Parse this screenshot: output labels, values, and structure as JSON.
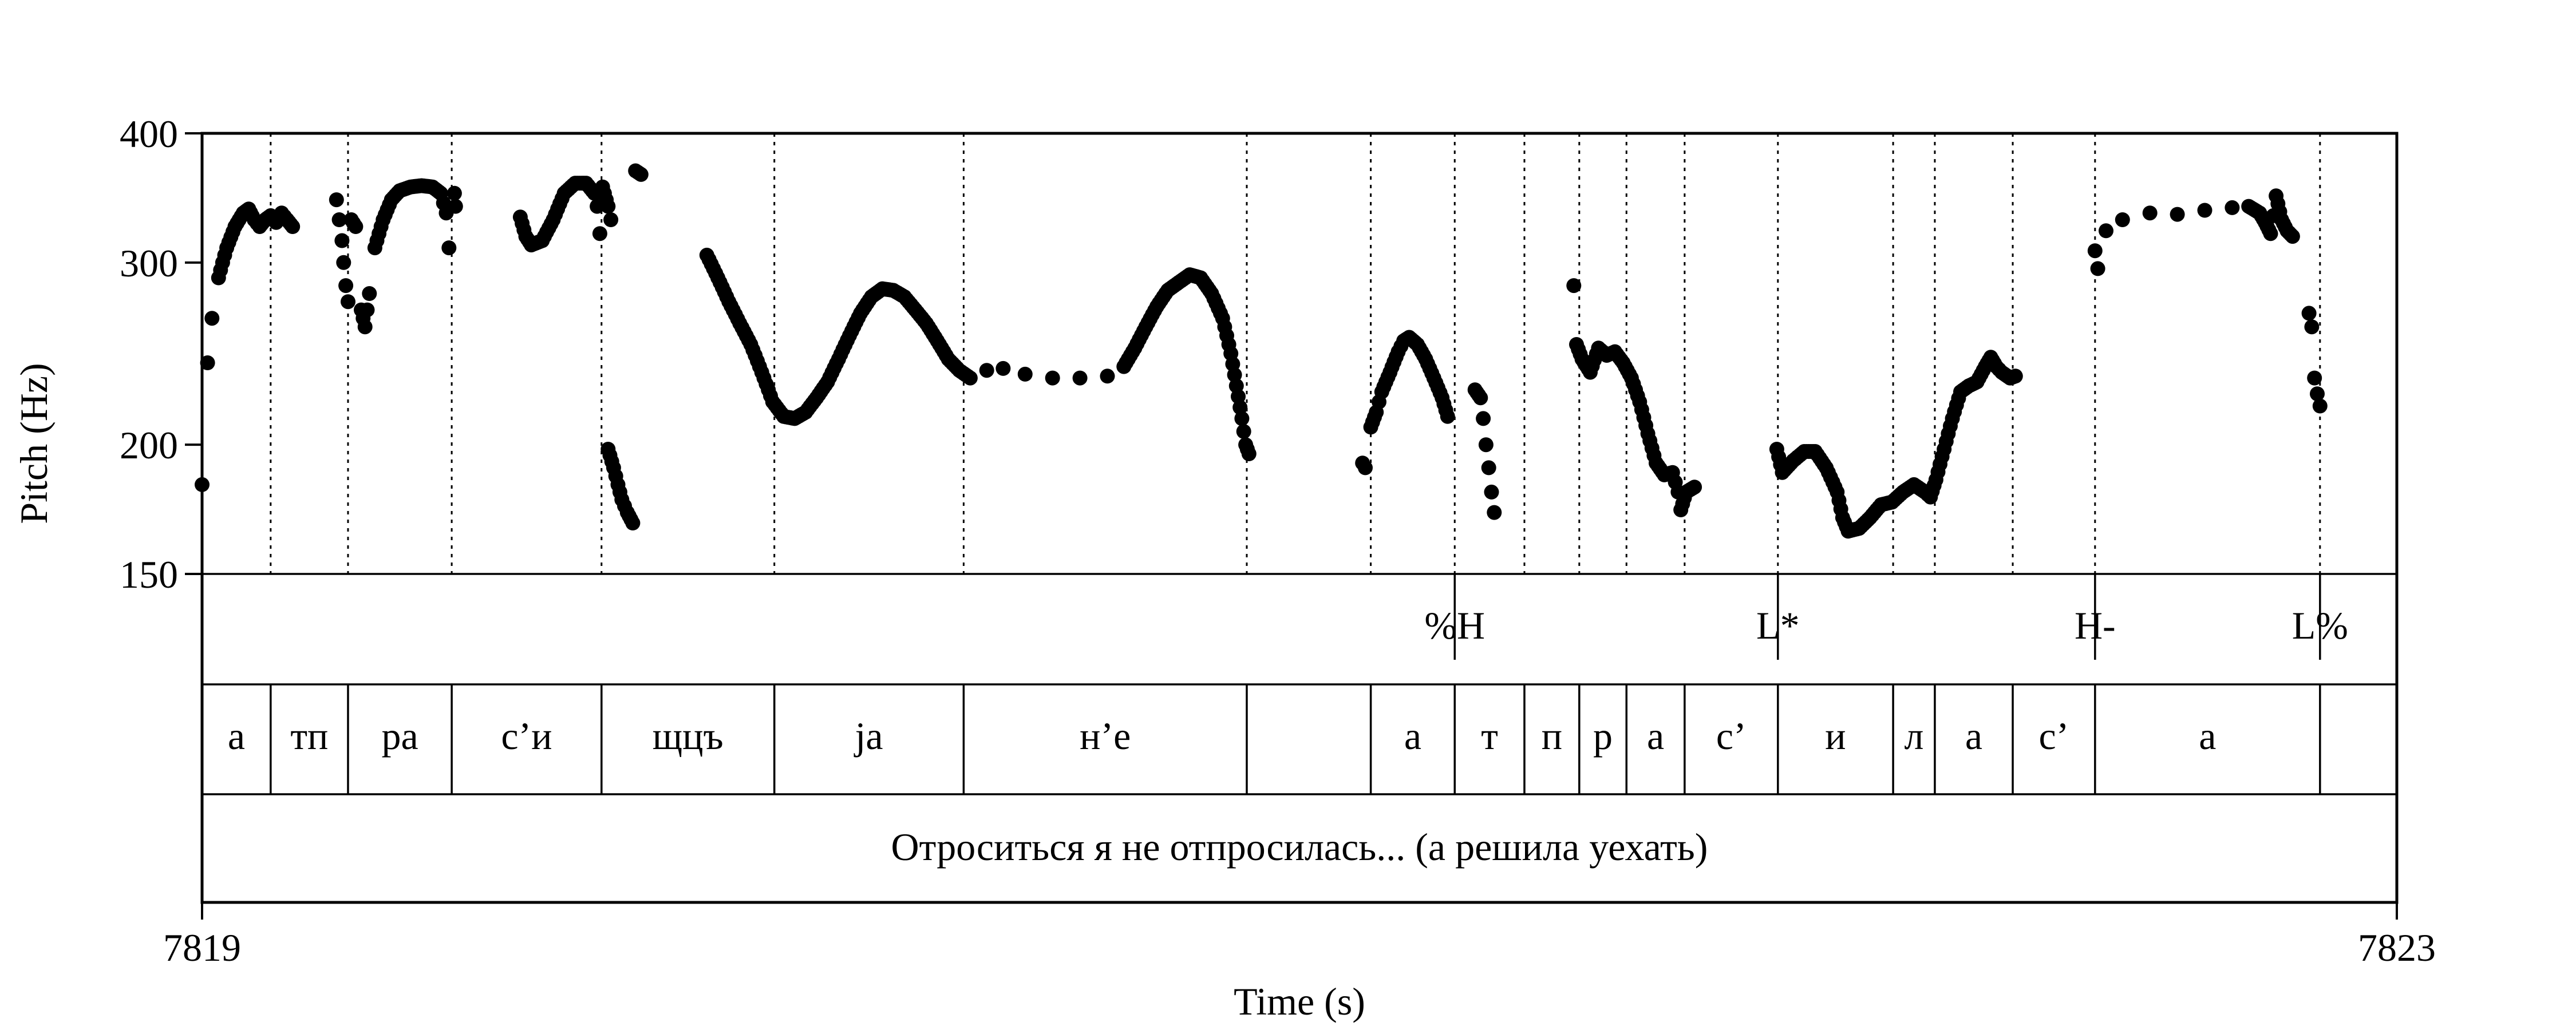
{
  "chart_data": {
    "type": "scatter",
    "xlabel": "Time (s)",
    "ylabel": "Pitch (Hz)",
    "xlim": [
      7819,
      7823
    ],
    "ylim": [
      150,
      400
    ],
    "y_scale": "log",
    "x_tick_labels": [
      "7819",
      "7823"
    ],
    "y_tick_labels": [
      "150",
      "200",
      "300",
      "400"
    ],
    "y_ticks": [
      150,
      200,
      300,
      400
    ],
    "grid": "dotted vertical lines at segment boundaries",
    "tiers": {
      "tones": [
        {
          "label": "%H",
          "t": 7821.283
        },
        {
          "label": "L*",
          "t": 7821.872
        },
        {
          "label": "H-",
          "t": 7822.45
        },
        {
          "label": "L%",
          "t": 7822.86
        }
      ],
      "segments": [
        {
          "label": "а",
          "start": 7819.0,
          "end": 7819.125
        },
        {
          "label": "тп",
          "start": 7819.125,
          "end": 7819.266
        },
        {
          "label": "ра",
          "start": 7819.266,
          "end": 7819.455
        },
        {
          "label": "с’и",
          "start": 7819.455,
          "end": 7819.728
        },
        {
          "label": "щцъ",
          "start": 7819.728,
          "end": 7820.043
        },
        {
          "label": "ja",
          "start": 7820.043,
          "end": 7820.388
        },
        {
          "label": "н’е",
          "start": 7820.388,
          "end": 7820.904
        },
        {
          "label": "",
          "start": 7820.904,
          "end": 7821.13
        },
        {
          "label": "а",
          "start": 7821.13,
          "end": 7821.283
        },
        {
          "label": "т",
          "start": 7821.283,
          "end": 7821.41
        },
        {
          "label": "п",
          "start": 7821.41,
          "end": 7821.51
        },
        {
          "label": "р",
          "start": 7821.51,
          "end": 7821.596
        },
        {
          "label": "а",
          "start": 7821.596,
          "end": 7821.702
        },
        {
          "label": "с’",
          "start": 7821.702,
          "end": 7821.872
        },
        {
          "label": "и",
          "start": 7821.872,
          "end": 7822.082
        },
        {
          "label": "л",
          "start": 7822.082,
          "end": 7822.158
        },
        {
          "label": "а",
          "start": 7822.158,
          "end": 7822.3
        },
        {
          "label": "с’",
          "start": 7822.3,
          "end": 7822.45
        },
        {
          "label": "а",
          "start": 7822.45,
          "end": 7822.86
        },
        {
          "label": "",
          "start": 7822.86,
          "end": 7823.0
        }
      ],
      "sentence": "Отроситься я не отпросилась... (а решила уехать)"
    },
    "series": [
      {
        "points": [
          [
            7819.0,
            183
          ],
          [
            7819.01,
            240
          ],
          [
            7819.018,
            265
          ],
          [
            7819.03,
            290
          ],
          [
            7819.045,
            310
          ],
          [
            7819.06,
            325
          ],
          [
            7819.075,
            335
          ],
          [
            7819.085,
            338
          ],
          [
            7819.095,
            330
          ],
          [
            7819.105,
            325
          ],
          [
            7819.115,
            330
          ],
          [
            7819.125,
            333
          ],
          [
            7819.135,
            328
          ],
          [
            7819.145,
            335
          ],
          [
            7819.155,
            330
          ],
          [
            7819.165,
            325
          ],
          [
            7819.245,
            345
          ],
          [
            7819.25,
            330
          ],
          [
            7819.255,
            315
          ],
          [
            7819.258,
            300
          ],
          [
            7819.262,
            285
          ],
          [
            7819.266,
            275
          ],
          [
            7819.272,
            330
          ],
          [
            7819.28,
            325
          ],
          [
            7819.29,
            270
          ],
          [
            7819.297,
            260
          ],
          [
            7819.305,
            280
          ],
          [
            7819.315,
            310
          ],
          [
            7819.33,
            330
          ],
          [
            7819.345,
            345
          ],
          [
            7819.36,
            352
          ],
          [
            7819.38,
            355
          ],
          [
            7819.4,
            356
          ],
          [
            7819.42,
            355
          ],
          [
            7819.435,
            350
          ],
          [
            7819.445,
            335
          ],
          [
            7819.45,
            310
          ],
          [
            7819.46,
            350
          ],
          [
            7819.462,
            340
          ],
          [
            7819.58,
            332
          ],
          [
            7819.59,
            318
          ],
          [
            7819.6,
            312
          ],
          [
            7819.62,
            315
          ],
          [
            7819.64,
            330
          ],
          [
            7819.66,
            350
          ],
          [
            7819.68,
            358
          ],
          [
            7819.7,
            358
          ],
          [
            7819.715,
            350
          ],
          [
            7819.72,
            340
          ],
          [
            7819.725,
            320
          ],
          [
            7819.73,
            355
          ],
          [
            7819.74,
            340
          ],
          [
            7819.745,
            330
          ],
          [
            7819.79,
            368
          ],
          [
            7819.8,
            365
          ],
          [
            7819.74,
            198
          ],
          [
            7819.75,
            190
          ],
          [
            7819.758,
            183
          ],
          [
            7819.765,
            177
          ],
          [
            7819.775,
            172
          ],
          [
            7819.785,
            168
          ],
          [
            7819.92,
            305
          ],
          [
            7819.94,
            290
          ],
          [
            7819.96,
            275
          ],
          [
            7819.98,
            262
          ],
          [
            7820.0,
            250
          ],
          [
            7820.02,
            235
          ],
          [
            7820.04,
            220
          ],
          [
            7820.06,
            213
          ],
          [
            7820.08,
            212
          ],
          [
            7820.1,
            215
          ],
          [
            7820.12,
            222
          ],
          [
            7820.14,
            230
          ],
          [
            7820.16,
            242
          ],
          [
            7820.18,
            255
          ],
          [
            7820.2,
            268
          ],
          [
            7820.22,
            278
          ],
          [
            7820.24,
            283
          ],
          [
            7820.26,
            282
          ],
          [
            7820.28,
            278
          ],
          [
            7820.3,
            270
          ],
          [
            7820.32,
            262
          ],
          [
            7820.34,
            252
          ],
          [
            7820.36,
            242
          ],
          [
            7820.38,
            236
          ],
          [
            7820.4,
            232
          ],
          [
            7820.43,
            236
          ],
          [
            7820.46,
            237
          ],
          [
            7820.5,
            234
          ],
          [
            7820.55,
            232
          ],
          [
            7820.6,
            232
          ],
          [
            7820.65,
            233
          ],
          [
            7820.68,
            238
          ],
          [
            7820.7,
            248
          ],
          [
            7820.72,
            260
          ],
          [
            7820.74,
            272
          ],
          [
            7820.76,
            282
          ],
          [
            7820.78,
            287
          ],
          [
            7820.8,
            292
          ],
          [
            7820.82,
            290
          ],
          [
            7820.84,
            280
          ],
          [
            7820.86,
            265
          ],
          [
            7820.875,
            245
          ],
          [
            7820.885,
            228
          ],
          [
            7820.895,
            212
          ],
          [
            7820.902,
            200
          ],
          [
            7820.908,
            196
          ],
          [
            7821.115,
            192
          ],
          [
            7821.12,
            190
          ],
          [
            7821.13,
            208
          ],
          [
            7821.14,
            215
          ],
          [
            7821.15,
            225
          ],
          [
            7821.165,
            235
          ],
          [
            7821.18,
            246
          ],
          [
            7821.19,
            252
          ],
          [
            7821.2,
            254
          ],
          [
            7821.215,
            250
          ],
          [
            7821.23,
            242
          ],
          [
            7821.245,
            232
          ],
          [
            7821.26,
            222
          ],
          [
            7821.27,
            213
          ],
          [
            7821.32,
            226
          ],
          [
            7821.33,
            222
          ],
          [
            7821.335,
            212
          ],
          [
            7821.34,
            200
          ],
          [
            7821.345,
            190
          ],
          [
            7821.35,
            180
          ],
          [
            7821.355,
            172
          ],
          [
            7821.5,
            285
          ],
          [
            7821.505,
            250
          ],
          [
            7821.515,
            242
          ],
          [
            7821.53,
            235
          ],
          [
            7821.545,
            248
          ],
          [
            7821.56,
            244
          ],
          [
            7821.575,
            246
          ],
          [
            7821.59,
            240
          ],
          [
            7821.605,
            232
          ],
          [
            7821.62,
            220
          ],
          [
            7821.635,
            205
          ],
          [
            7821.65,
            192
          ],
          [
            7821.665,
            187
          ],
          [
            7821.68,
            188
          ],
          [
            7821.69,
            180
          ],
          [
            7821.695,
            173
          ],
          [
            7821.705,
            180
          ],
          [
            7821.72,
            182
          ],
          [
            7821.87,
            198
          ],
          [
            7821.88,
            188
          ],
          [
            7821.9,
            193
          ],
          [
            7821.92,
            197
          ],
          [
            7821.94,
            197
          ],
          [
            7821.96,
            190
          ],
          [
            7821.98,
            180
          ],
          [
            7821.99,
            170
          ],
          [
            7822.0,
            165
          ],
          [
            7822.02,
            166
          ],
          [
            7822.04,
            170
          ],
          [
            7822.06,
            175
          ],
          [
            7822.08,
            176
          ],
          [
            7822.1,
            180
          ],
          [
            7822.12,
            183
          ],
          [
            7822.14,
            180
          ],
          [
            7822.15,
            178
          ],
          [
            7822.16,
            185
          ],
          [
            7822.175,
            198
          ],
          [
            7822.19,
            212
          ],
          [
            7822.205,
            225
          ],
          [
            7822.22,
            228
          ],
          [
            7822.235,
            230
          ],
          [
            7822.25,
            238
          ],
          [
            7822.26,
            243
          ],
          [
            7822.27,
            238
          ],
          [
            7822.28,
            235
          ],
          [
            7822.295,
            232
          ],
          [
            7822.305,
            233
          ],
          [
            7822.45,
            308
          ],
          [
            7822.455,
            296
          ],
          [
            7822.47,
            322
          ],
          [
            7822.5,
            330
          ],
          [
            7822.55,
            335
          ],
          [
            7822.6,
            334
          ],
          [
            7822.65,
            337
          ],
          [
            7822.7,
            339
          ],
          [
            7822.73,
            340
          ],
          [
            7822.75,
            335
          ],
          [
            7822.76,
            328
          ],
          [
            7822.77,
            320
          ],
          [
            7822.775,
            333
          ],
          [
            7822.78,
            348
          ],
          [
            7822.79,
            330
          ],
          [
            7822.8,
            322
          ],
          [
            7822.81,
            318
          ],
          [
            7822.84,
            268
          ],
          [
            7822.845,
            260
          ],
          [
            7822.85,
            232
          ],
          [
            7822.855,
            224
          ],
          [
            7822.86,
            218
          ]
        ]
      }
    ]
  }
}
